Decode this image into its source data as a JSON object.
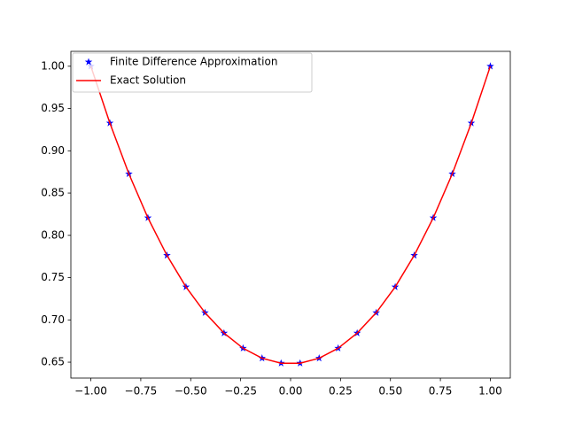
{
  "chart_data": {
    "type": "line",
    "x": [
      -1.0,
      -0.9048,
      -0.8095,
      -0.7143,
      -0.619,
      -0.5238,
      -0.4286,
      -0.3333,
      -0.2381,
      -0.1429,
      -0.0476,
      0.0476,
      0.1429,
      0.2381,
      0.3333,
      0.4286,
      0.5238,
      0.619,
      0.7143,
      0.8095,
      0.9048,
      1.0
    ],
    "series": [
      {
        "name": "Finite Difference Approximation",
        "color": "#0000ff",
        "marker": "star",
        "line": false,
        "values": [
          1.0,
          0.9328,
          0.8727,
          0.8207,
          0.7763,
          0.739,
          0.7085,
          0.6844,
          0.6665,
          0.6547,
          0.6488,
          0.6488,
          0.6547,
          0.6665,
          0.6844,
          0.7085,
          0.739,
          0.7763,
          0.8207,
          0.8727,
          0.9328,
          1.0
        ]
      },
      {
        "name": "Exact Solution",
        "color": "#ff0000",
        "marker": null,
        "line": true,
        "values": [
          1.0,
          0.9328,
          0.8727,
          0.8207,
          0.7763,
          0.739,
          0.7085,
          0.6844,
          0.6665,
          0.6547,
          0.6488,
          0.6488,
          0.6547,
          0.6665,
          0.6844,
          0.7085,
          0.739,
          0.7763,
          0.8207,
          0.8727,
          0.9328,
          1.0
        ]
      }
    ],
    "xlim": [
      -1.1,
      1.1
    ],
    "xticks": [
      {
        "value": -1.0,
        "label": "−1.00"
      },
      {
        "value": -0.75,
        "label": "−0.75"
      },
      {
        "value": -0.5,
        "label": "−0.50"
      },
      {
        "value": -0.25,
        "label": "−0.25"
      },
      {
        "value": 0.0,
        "label": "0.00"
      },
      {
        "value": 0.25,
        "label": "0.25"
      },
      {
        "value": 0.5,
        "label": "0.50"
      },
      {
        "value": 0.75,
        "label": "0.75"
      },
      {
        "value": 1.0,
        "label": "1.00"
      }
    ],
    "ylim": [
      0.6312,
      1.0176
    ],
    "yticks": [
      {
        "value": 0.65,
        "label": "0.65"
      },
      {
        "value": 0.7,
        "label": "0.70"
      },
      {
        "value": 0.75,
        "label": "0.75"
      },
      {
        "value": 0.8,
        "label": "0.80"
      },
      {
        "value": 0.85,
        "label": "0.85"
      },
      {
        "value": 0.9,
        "label": "0.90"
      },
      {
        "value": 0.95,
        "label": "0.95"
      },
      {
        "value": 1.0,
        "label": "1.00"
      }
    ],
    "legend": "upper left",
    "grid": false
  }
}
